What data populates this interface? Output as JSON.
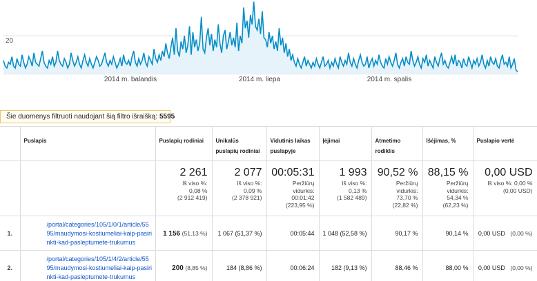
{
  "chart_data": {
    "type": "area",
    "ylim": [
      0,
      40
    ],
    "yticks": [
      "20"
    ],
    "xticks": [
      "2014 m. balandis",
      "2014 m. liepa",
      "2014 m. spalis"
    ],
    "color": "#058dc7",
    "fill": "#e6f3fa",
    "values": [
      7,
      4,
      3,
      6,
      5,
      9,
      4,
      3,
      8,
      5,
      4,
      10,
      6,
      3,
      5,
      9,
      7,
      4,
      11,
      6,
      5,
      4,
      8,
      12,
      6,
      4,
      3,
      7,
      5,
      9,
      4,
      6,
      12,
      7,
      5,
      4,
      8,
      6,
      3,
      5,
      11,
      7,
      4,
      6,
      9,
      5,
      3,
      7,
      10,
      6,
      4,
      8,
      5,
      3,
      6,
      9,
      7,
      4,
      5,
      8,
      11,
      6,
      4,
      7,
      5,
      9,
      6,
      3,
      5,
      8,
      4,
      10,
      6,
      5,
      7,
      4,
      9,
      12,
      6,
      4,
      8,
      5,
      7,
      11,
      6,
      4,
      9,
      7,
      5,
      13,
      8,
      6,
      10,
      7,
      12,
      9,
      16,
      11,
      8,
      14,
      19,
      10,
      24,
      12,
      9,
      17,
      13,
      20,
      11,
      15,
      25,
      10,
      22,
      14,
      18,
      12,
      16,
      30,
      13,
      11,
      19,
      24,
      15,
      21,
      12,
      18,
      14,
      26,
      16,
      11,
      20,
      23,
      13,
      17,
      22,
      15,
      19,
      14,
      27,
      12,
      20,
      16,
      35,
      24,
      28,
      19,
      31,
      26,
      38,
      25,
      23,
      29,
      21,
      33,
      19,
      18,
      14,
      22,
      16,
      20,
      13,
      17,
      12,
      24,
      15,
      19,
      11,
      16,
      9,
      13,
      7,
      10,
      6,
      4,
      8,
      5,
      3,
      6,
      9,
      4,
      7,
      5,
      3,
      6,
      4,
      8,
      5,
      3,
      6,
      9,
      4,
      5,
      7,
      3,
      6,
      4,
      8,
      5,
      3,
      9,
      6,
      4,
      7,
      5,
      11,
      6,
      4,
      8,
      5,
      3,
      7,
      10,
      6,
      4,
      5,
      9,
      3,
      6,
      8,
      4,
      7,
      5,
      10,
      6,
      4,
      3,
      8,
      5,
      9,
      6,
      4,
      7,
      11,
      5,
      3,
      6,
      8,
      4,
      9,
      6,
      5,
      12,
      7,
      4,
      6,
      9,
      5,
      3,
      8,
      6,
      10,
      4,
      7,
      5,
      3,
      9,
      6,
      4,
      8,
      11,
      5,
      7,
      4,
      3,
      6,
      9,
      5,
      10,
      4,
      7,
      6,
      3,
      8,
      5,
      4,
      9,
      6,
      3,
      7,
      5,
      8,
      4,
      6,
      10,
      5,
      3,
      7,
      4,
      9,
      6,
      5,
      8,
      4,
      3,
      7,
      10,
      5,
      6,
      4,
      9,
      3,
      5,
      8,
      2,
      1
    ]
  },
  "filter_note": {
    "text": "Šie duomenys filtruoti naudojant šią filtro išraišką:",
    "count": "5595"
  },
  "table": {
    "headers": {
      "page": "Puslapis",
      "pageviews": "Puslapių rodiniai",
      "unique": "Unikalūs puslapių rodiniai",
      "avg_time": "Vidutinis laikas puslapyje",
      "entrances": "Įėjimai",
      "bounce": "Atmetimo rodiklis",
      "exit": "Išėjimas, %",
      "value": "Puslapio vertė"
    },
    "totals": {
      "pageviews": {
        "big": "2 261",
        "l1": "Iš viso %:",
        "l2": "0,08 %",
        "l3": "(2 912 419)"
      },
      "unique": {
        "big": "2 077",
        "l1": "Iš viso %:",
        "l2": "0,09 %",
        "l3": "(2 378 921)"
      },
      "avg_time": {
        "big": "00:05:31",
        "l1": "Peržiūrų",
        "l2": "vidurkis:",
        "l3": "00:01:42",
        "l4": "(223,95 %)"
      },
      "entrances": {
        "big": "1 993",
        "l1": "Iš viso %:",
        "l2": "0,13 %",
        "l3": "(1 582 489)"
      },
      "bounce": {
        "big": "90,52 %",
        "l1": "Peržiūrų",
        "l2": "vidurkis:",
        "l3": "73,70 %",
        "l4": "(22,82 %)"
      },
      "exit": {
        "big": "88,15 %",
        "l1": "Peržiūrų",
        "l2": "vidurkis:",
        "l3": "54,34 %",
        "l4": "(62,23 %)"
      },
      "value": {
        "big": "0,00 USD",
        "l1": "Iš viso %: 0,00 %",
        "l2": "(0,00 USD)"
      }
    },
    "rows": [
      {
        "num": "1.",
        "page": "/portal/categories/105/1/0/1/article/5595/maudymosi-kostiumeliai-kaip-pasirinkti-kad-pasleptumete-trukumus",
        "pageviews": "1 156",
        "pageviews_pct": "(51,13 %)",
        "unique": "1 067 (51,37 %)",
        "avg_time": "00:05:44",
        "entrances": "1 048 (52,58 %)",
        "bounce": "90,17 %",
        "exit": "90,14 %",
        "value": "0,00 USD",
        "value_pct": "(0,00 %)"
      },
      {
        "num": "2.",
        "page": "/portal/categories/105/1/4/2/article/5595/maudymosi-kostiumeliai-kaip-pasirinkti-kad-pasleptumete-trukumus",
        "pageviews": "200",
        "pageviews_pct": "(8,85 %)",
        "unique": "184 (8,86 %)",
        "avg_time": "00:06:24",
        "entrances": "182 (9,13 %)",
        "bounce": "88,46 %",
        "exit": "88,00 %",
        "value": "0,00 USD",
        "value_pct": "(0,00 %)"
      }
    ]
  }
}
